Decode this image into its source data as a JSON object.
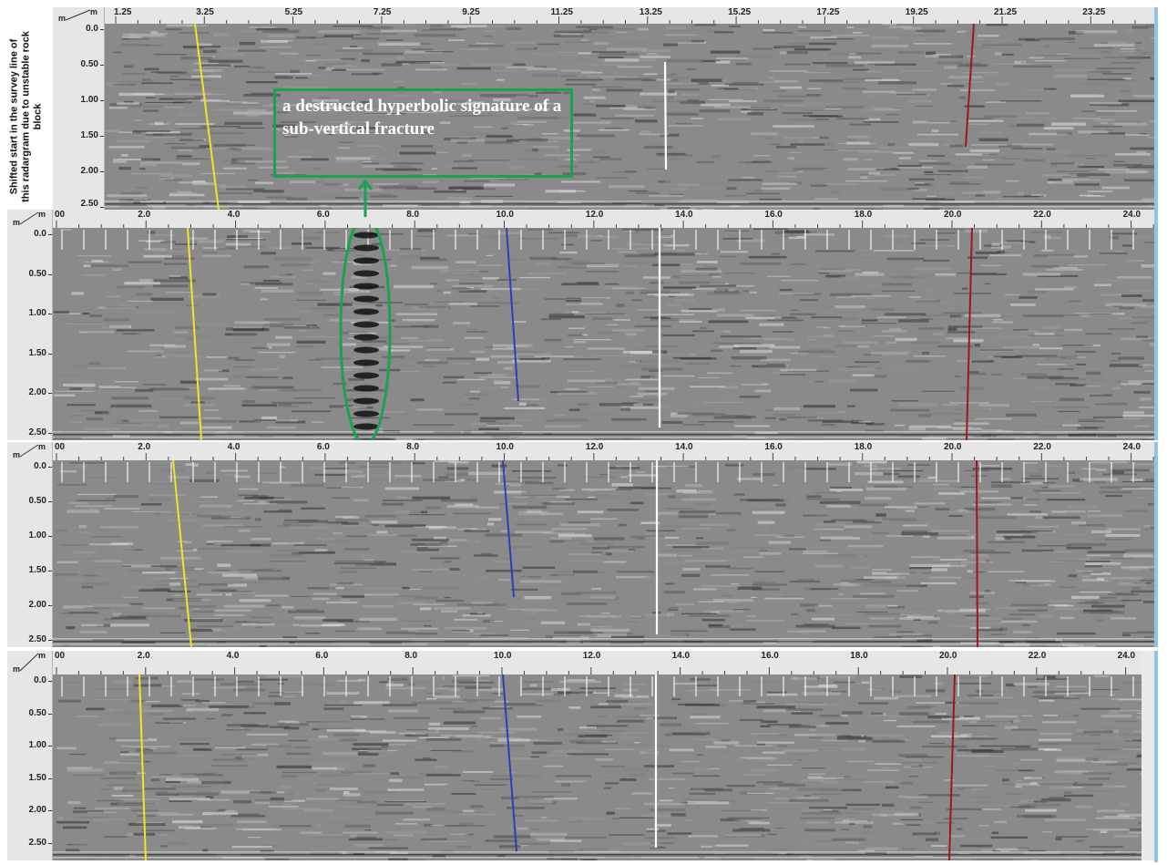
{
  "side_note": "Shifted start in the survey line of this radargram due to unstable rock block",
  "annotation": "a destructed hyperbolic signature of a sub-vertical fracture",
  "axis_corner_unit": "m",
  "panels": [
    {
      "name": "radargram-1",
      "x_labels": [
        "1.25",
        "3.25",
        "5.25",
        "7.25",
        "9.25",
        "11.25",
        "13.25",
        "15.25",
        "17.25",
        "19.25",
        "21.25",
        "23.25"
      ],
      "depth_labels": [
        "0.0",
        "0.50",
        "1.00",
        "1.50",
        "2.00",
        "2.50"
      ]
    },
    {
      "name": "radargram-2",
      "x_labels": [
        "00",
        "2.0",
        "4.0",
        "6.0",
        "8.0",
        "10.0",
        "12.0",
        "14.0",
        "16.0",
        "18.0",
        "20.0",
        "22.0",
        "24.0"
      ],
      "depth_labels": [
        "0.0",
        "0.50",
        "1.00",
        "1.50",
        "2.00",
        "2.50"
      ]
    },
    {
      "name": "radargram-3",
      "x_labels": [
        "00",
        "2.0",
        "4.0",
        "6.0",
        "8.0",
        "10.0",
        "12.0",
        "14.0",
        "16.0",
        "18.0",
        "20.0",
        "22.0",
        "24.0"
      ],
      "depth_labels": [
        "0.0",
        "0.50",
        "1.00",
        "1.50",
        "2.00",
        "2.50"
      ]
    },
    {
      "name": "radargram-4",
      "x_labels": [
        "00",
        "2.0",
        "4.0",
        "6.0",
        "8.0",
        "10.0",
        "12.0",
        "14.0",
        "16.0",
        "18.0",
        "20.0",
        "22.0",
        "24.0"
      ],
      "depth_labels": [
        "0.0",
        "0.50",
        "1.00",
        "1.50",
        "2.00",
        "2.50"
      ]
    }
  ],
  "colors": {
    "yellow_line": "#f2e22a",
    "blue_line": "#2b3fb8",
    "white_line": "#ffffff",
    "red_line": "#a31621",
    "annotation_green": "#1aa34f"
  }
}
